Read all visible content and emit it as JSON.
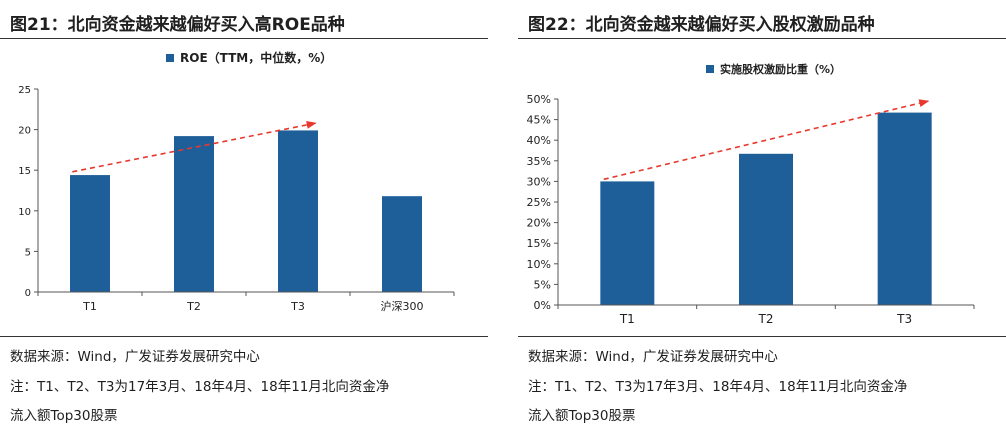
{
  "figures": [
    {
      "title": "图21：北向资金越来越偏好买入高ROE品种",
      "source": "数据来源：Wind，广发证券发展研究中心",
      "note_line1": "注：T1、T2、T3为17年3月、18年4月、18年11月北向资金净",
      "note_line2": "流入额Top30股票",
      "chart_data": {
        "type": "bar",
        "categories": [
          "T1",
          "T2",
          "T3",
          "沪深300"
        ],
        "series": [
          {
            "name": "ROE（TTM，中位数，%）",
            "values": [
              14.4,
              19.2,
              19.9,
              11.8
            ]
          }
        ],
        "ylim": [
          0,
          25
        ],
        "yticks": [
          0,
          5,
          10,
          15,
          20,
          25
        ],
        "ytick_labels": [
          "0",
          "5",
          "10",
          "15",
          "20",
          "25"
        ],
        "trend_arrow": {
          "from_category": "T1",
          "from_value": 14.8,
          "to_category": "T3",
          "to_value": 20.8
        },
        "legend": "top-center",
        "bar_color": "#1f5f99",
        "arrow_color": "#e8382e"
      }
    },
    {
      "title": "图22：北向资金越来越偏好买入股权激励品种",
      "source": "数据来源：Wind，广发证券发展研究中心",
      "note_line1": "注：T1、T2、T3为17年3月、18年4月、18年11月北向资金净",
      "note_line2": "流入额Top30股票",
      "chart_data": {
        "type": "bar",
        "categories": [
          "T1",
          "T2",
          "T3"
        ],
        "series": [
          {
            "name": "实施股权激励比重（%）",
            "values": [
              30,
              36.7,
              46.7
            ]
          }
        ],
        "ylim": [
          0,
          50
        ],
        "yticks": [
          0,
          5,
          10,
          15,
          20,
          25,
          30,
          35,
          40,
          45,
          50
        ],
        "ytick_labels": [
          "0%",
          "5%",
          "10%",
          "15%",
          "20%",
          "25%",
          "30%",
          "35%",
          "40%",
          "45%",
          "50%"
        ],
        "trend_arrow": {
          "from_category": "T1",
          "from_value": 30.5,
          "to_category": "T3",
          "to_value": 49.5
        },
        "legend": "top-center",
        "bar_color": "#1f5f99",
        "arrow_color": "#e8382e"
      }
    }
  ]
}
